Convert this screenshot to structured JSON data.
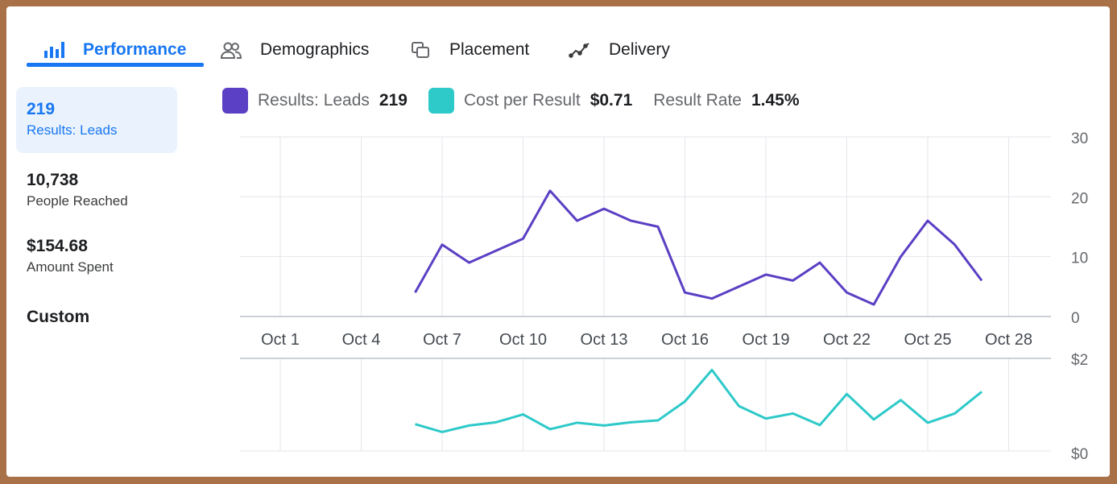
{
  "tabs": [
    {
      "label": "Performance",
      "icon": "bar-chart-icon",
      "active": true
    },
    {
      "label": "Demographics",
      "icon": "people-icon",
      "active": false
    },
    {
      "label": "Placement",
      "icon": "placement-icon",
      "active": false
    },
    {
      "label": "Delivery",
      "icon": "delivery-icon",
      "active": false
    }
  ],
  "metrics": [
    {
      "value": "219",
      "label": "Results: Leads",
      "active": true
    },
    {
      "value": "10,738",
      "label": "People Reached",
      "active": false
    },
    {
      "value": "$154.68",
      "label": "Amount Spent",
      "active": false
    }
  ],
  "custom_label": "Custom",
  "legend": {
    "results_label": "Results: Leads",
    "results_value": "219",
    "cost_label": "Cost per Result",
    "cost_value": "$0.71",
    "rate_label": "Result Rate",
    "rate_value": "1.45%"
  },
  "colors": {
    "accent": "#1877f2",
    "leads": "#5b3fc4",
    "cost": "#2ec9c9"
  },
  "chart_data": [
    {
      "type": "line",
      "x_ticks": [
        "Oct 1",
        "Oct 4",
        "Oct 7",
        "Oct 10",
        "Oct 13",
        "Oct 16",
        "Oct 19",
        "Oct 22",
        "Oct 25",
        "Oct 28"
      ],
      "y_ticks": [
        "0",
        "10",
        "20",
        "30"
      ],
      "ylim": [
        0,
        30
      ],
      "grid": true,
      "series": [
        {
          "name": "Results: Leads",
          "x": [
            "Oct 6",
            "Oct 7",
            "Oct 8",
            "Oct 9",
            "Oct 10",
            "Oct 11",
            "Oct 12",
            "Oct 13",
            "Oct 14",
            "Oct 15",
            "Oct 16",
            "Oct 17",
            "Oct 18",
            "Oct 19",
            "Oct 20",
            "Oct 21",
            "Oct 22",
            "Oct 23",
            "Oct 24",
            "Oct 25",
            "Oct 26",
            "Oct 27"
          ],
          "values": [
            4,
            12,
            9,
            11,
            13,
            21,
            16,
            18,
            16,
            15,
            4,
            3,
            5,
            7,
            6,
            9,
            4,
            2,
            10,
            16,
            12,
            6
          ]
        }
      ]
    },
    {
      "type": "line",
      "y_ticks": [
        "$0",
        "$2"
      ],
      "ylim": [
        0,
        2
      ],
      "grid": true,
      "series": [
        {
          "name": "Cost per Result",
          "x": [
            "Oct 6",
            "Oct 7",
            "Oct 8",
            "Oct 9",
            "Oct 10",
            "Oct 11",
            "Oct 12",
            "Oct 13",
            "Oct 14",
            "Oct 15",
            "Oct 16",
            "Oct 17",
            "Oct 18",
            "Oct 19",
            "Oct 20",
            "Oct 21",
            "Oct 22",
            "Oct 23",
            "Oct 24",
            "Oct 25",
            "Oct 26",
            "Oct 27"
          ],
          "values": [
            0.58,
            0.41,
            0.55,
            0.62,
            0.79,
            0.47,
            0.61,
            0.55,
            0.62,
            0.66,
            1.07,
            1.75,
            0.97,
            0.7,
            0.81,
            0.56,
            1.23,
            0.68,
            1.1,
            0.61,
            0.81,
            1.28
          ]
        }
      ]
    }
  ]
}
